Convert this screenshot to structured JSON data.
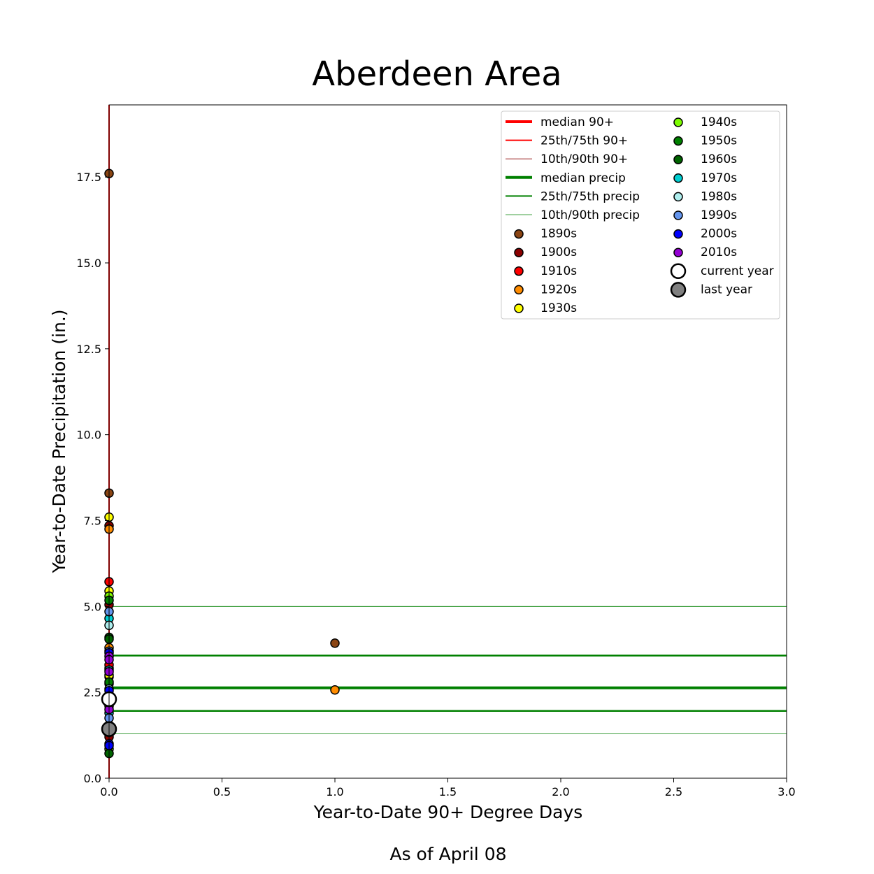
{
  "chart_data": {
    "type": "scatter",
    "title": "Aberdeen Area",
    "xlabel": "Year-to-Date 90+ Degree Days",
    "ylabel": "Year-to-Date Precipitation (in.)",
    "footnote": "As of April 08",
    "xlim": [
      0,
      3
    ],
    "ylim": [
      0,
      19.6
    ],
    "xticks": [
      0,
      0.5,
      1.0,
      1.5,
      2.0,
      2.5,
      3.0
    ],
    "xtick_labels": [
      "0.0",
      "0.5",
      "1.0",
      "1.5",
      "2.0",
      "2.5",
      "3.0"
    ],
    "yticks": [
      0,
      2.5,
      5.0,
      7.5,
      10.0,
      12.5,
      15.0,
      17.5
    ],
    "ytick_labels": [
      "0.0",
      "2.5",
      "5.0",
      "7.5",
      "10.0",
      "12.5",
      "15.0",
      "17.5"
    ],
    "grid": false,
    "legend_position": "top-right",
    "reference_lines": {
      "median_90": 0,
      "p25_p75_90": [
        0,
        0
      ],
      "p10_p90_90": [
        0,
        0
      ],
      "median_precip": 2.63,
      "p25_p75_precip": [
        1.96,
        3.57
      ],
      "p10_p90_precip": [
        1.29,
        5.0
      ]
    },
    "legend": [
      {
        "label": "median 90+",
        "kind": "line",
        "color": "#ff0000",
        "width": 4
      },
      {
        "label": "25th/75th 90+",
        "kind": "line",
        "color": "#ff0000",
        "width": 2
      },
      {
        "label": "10th/90th 90+",
        "kind": "line",
        "color": "#8b0000",
        "width": 0.8
      },
      {
        "label": "median precip",
        "kind": "line",
        "color": "#008000",
        "width": 4
      },
      {
        "label": "25th/75th precip",
        "kind": "line",
        "color": "#008000",
        "width": 2
      },
      {
        "label": "10th/90th precip",
        "kind": "line",
        "color": "#008000",
        "width": 0.8
      },
      {
        "label": "1890s",
        "kind": "marker",
        "color": "#8b4513"
      },
      {
        "label": "1900s",
        "kind": "marker",
        "color": "#8b0000"
      },
      {
        "label": "1910s",
        "kind": "marker",
        "color": "#ff0000"
      },
      {
        "label": "1920s",
        "kind": "marker",
        "color": "#ff8c00"
      },
      {
        "label": "1930s",
        "kind": "marker",
        "color": "#ffff00"
      },
      {
        "label": "1940s",
        "kind": "marker",
        "color": "#7cfc00"
      },
      {
        "label": "1950s",
        "kind": "marker",
        "color": "#008000"
      },
      {
        "label": "1960s",
        "kind": "marker",
        "color": "#006400"
      },
      {
        "label": "1970s",
        "kind": "marker",
        "color": "#00ced1"
      },
      {
        "label": "1980s",
        "kind": "marker",
        "color": "#afeeee"
      },
      {
        "label": "1990s",
        "kind": "marker",
        "color": "#6495ed"
      },
      {
        "label": "2000s",
        "kind": "marker",
        "color": "#0000ff"
      },
      {
        "label": "2010s",
        "kind": "marker",
        "color": "#9400d3"
      },
      {
        "label": "current year",
        "kind": "big-marker",
        "color": "#ffffff"
      },
      {
        "label": "last year",
        "kind": "big-marker",
        "color": "#808080"
      }
    ],
    "series": [
      {
        "name": "1890s",
        "color": "#8b4513",
        "points": [
          [
            0,
            17.6
          ],
          [
            0,
            8.3
          ],
          [
            1.0,
            3.93
          ],
          [
            0,
            3.2
          ]
        ]
      },
      {
        "name": "1900s",
        "color": "#8b0000",
        "points": [
          [
            0,
            7.35
          ],
          [
            0,
            5.05
          ],
          [
            0,
            2.95
          ],
          [
            0,
            1.2
          ]
        ]
      },
      {
        "name": "1910s",
        "color": "#ff0000",
        "points": [
          [
            0,
            5.72
          ],
          [
            0,
            3.3
          ],
          [
            0,
            2.1
          ]
        ]
      },
      {
        "name": "1920s",
        "color": "#ff8c00",
        "points": [
          [
            0,
            7.25
          ],
          [
            0,
            3.8
          ],
          [
            1.0,
            2.57
          ],
          [
            0,
            2.45
          ]
        ]
      },
      {
        "name": "1930s",
        "color": "#ffff00",
        "points": [
          [
            0,
            7.6
          ],
          [
            0,
            5.45
          ],
          [
            0,
            3.0
          ],
          [
            0,
            2.25
          ]
        ]
      },
      {
        "name": "1940s",
        "color": "#7cfc00",
        "points": [
          [
            0,
            5.3
          ],
          [
            0,
            2.75
          ],
          [
            0,
            0.85
          ]
        ]
      },
      {
        "name": "1950s",
        "color": "#008000",
        "points": [
          [
            0,
            5.18
          ],
          [
            0,
            2.8
          ],
          [
            0,
            1.55
          ]
        ]
      },
      {
        "name": "1960s",
        "color": "#006400",
        "points": [
          [
            0,
            4.1
          ],
          [
            0,
            4.05
          ],
          [
            0,
            0.72
          ]
        ]
      },
      {
        "name": "1970s",
        "color": "#00ced1",
        "points": [
          [
            0,
            4.65
          ],
          [
            0,
            3.15
          ],
          [
            0,
            1.9
          ]
        ]
      },
      {
        "name": "1980s",
        "color": "#afeeee",
        "points": [
          [
            0,
            4.45
          ],
          [
            0,
            2.6
          ],
          [
            0,
            1.45
          ]
        ]
      },
      {
        "name": "1990s",
        "color": "#6495ed",
        "points": [
          [
            0,
            4.85
          ],
          [
            0,
            3.7
          ],
          [
            0,
            1.75
          ]
        ]
      },
      {
        "name": "2000s",
        "color": "#0000ff",
        "points": [
          [
            0,
            3.65
          ],
          [
            0,
            2.55
          ],
          [
            0,
            1.0
          ],
          [
            0,
            0.95
          ]
        ]
      },
      {
        "name": "2010s",
        "color": "#9400d3",
        "points": [
          [
            0,
            3.55
          ],
          [
            0,
            3.45
          ],
          [
            0,
            3.1
          ],
          [
            0,
            2.0
          ]
        ]
      },
      {
        "name": "current year",
        "color": "#ffffff",
        "big": true,
        "points": [
          [
            0,
            2.3
          ]
        ]
      },
      {
        "name": "last year",
        "color": "#808080",
        "big": true,
        "points": [
          [
            0,
            1.43
          ]
        ]
      }
    ]
  }
}
